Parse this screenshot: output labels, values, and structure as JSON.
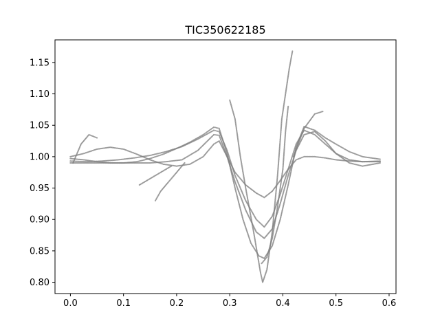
{
  "chart_data": {
    "type": "scatter",
    "title": "TIC350622185",
    "xlabel": "",
    "ylabel": "",
    "xlim": [
      -0.029,
      0.613
    ],
    "ylim": [
      0.782,
      1.186
    ],
    "xticks": [
      0.0,
      0.1,
      0.2,
      0.3,
      0.4,
      0.5,
      0.6
    ],
    "xtick_labels": [
      "0.0",
      "0.1",
      "0.2",
      "0.3",
      "0.4",
      "0.5",
      "0.6"
    ],
    "yticks": [
      0.8,
      0.85,
      0.9,
      0.95,
      1.0,
      1.05,
      1.1,
      1.15
    ],
    "ytick_labels": [
      "0.80",
      "0.85",
      "0.90",
      "0.95",
      "1.00",
      "1.05",
      "1.10",
      "1.15"
    ],
    "grid": false,
    "legend": "none",
    "marker_color": "#808080",
    "series": [
      {
        "curve": "deepest-eclipse",
        "points": [
          [
            0.0,
            0.997
          ],
          [
            0.025,
            0.995
          ],
          [
            0.05,
            0.992
          ],
          [
            0.075,
            0.99
          ],
          [
            0.1,
            0.99
          ],
          [
            0.125,
            0.992
          ],
          [
            0.15,
            0.997
          ],
          [
            0.175,
            1.004
          ],
          [
            0.2,
            1.013
          ],
          [
            0.225,
            1.023
          ],
          [
            0.25,
            1.035
          ],
          [
            0.27,
            1.047
          ],
          [
            0.28,
            1.045
          ],
          [
            0.295,
            1.005
          ],
          [
            0.31,
            0.95
          ],
          [
            0.325,
            0.9
          ],
          [
            0.34,
            0.862
          ],
          [
            0.355,
            0.842
          ],
          [
            0.365,
            0.838
          ],
          [
            0.38,
            0.858
          ],
          [
            0.395,
            0.9
          ],
          [
            0.41,
            0.955
          ],
          [
            0.425,
            1.015
          ],
          [
            0.44,
            1.048
          ],
          [
            0.46,
            1.042
          ],
          [
            0.48,
            1.03
          ],
          [
            0.5,
            1.02
          ],
          [
            0.525,
            1.008
          ],
          [
            0.55,
            1.0
          ],
          [
            0.583,
            0.996
          ]
        ]
      },
      {
        "curve": "medium-eclipse",
        "points": [
          [
            0.0,
            0.993
          ],
          [
            0.03,
            0.992
          ],
          [
            0.06,
            0.993
          ],
          [
            0.09,
            0.995
          ],
          [
            0.12,
            0.998
          ],
          [
            0.15,
            1.002
          ],
          [
            0.18,
            1.008
          ],
          [
            0.21,
            1.016
          ],
          [
            0.24,
            1.028
          ],
          [
            0.27,
            1.042
          ],
          [
            0.28,
            1.04
          ],
          [
            0.295,
            1.01
          ],
          [
            0.31,
            0.97
          ],
          [
            0.33,
            0.93
          ],
          [
            0.35,
            0.9
          ],
          [
            0.365,
            0.888
          ],
          [
            0.38,
            0.905
          ],
          [
            0.395,
            0.94
          ],
          [
            0.41,
            0.98
          ],
          [
            0.425,
            1.02
          ],
          [
            0.44,
            1.042
          ],
          [
            0.46,
            1.035
          ],
          [
            0.48,
            1.02
          ],
          [
            0.5,
            1.005
          ],
          [
            0.525,
            0.995
          ],
          [
            0.55,
            0.992
          ],
          [
            0.583,
            0.993
          ]
        ]
      },
      {
        "curve": "shallow-eclipse",
        "points": [
          [
            0.0,
            0.99
          ],
          [
            0.03,
            0.99
          ],
          [
            0.06,
            0.99
          ],
          [
            0.09,
            0.99
          ],
          [
            0.12,
            0.99
          ],
          [
            0.15,
            0.99
          ],
          [
            0.18,
            0.992
          ],
          [
            0.21,
            0.995
          ],
          [
            0.24,
            1.01
          ],
          [
            0.27,
            1.035
          ],
          [
            0.28,
            1.034
          ],
          [
            0.295,
            1.0
          ],
          [
            0.31,
            0.975
          ],
          [
            0.33,
            0.955
          ],
          [
            0.35,
            0.942
          ],
          [
            0.365,
            0.935
          ],
          [
            0.38,
            0.945
          ],
          [
            0.395,
            0.962
          ],
          [
            0.41,
            0.98
          ],
          [
            0.425,
            0.995
          ],
          [
            0.44,
            1.0
          ],
          [
            0.46,
            1.0
          ],
          [
            0.48,
            0.998
          ],
          [
            0.5,
            0.995
          ],
          [
            0.525,
            0.993
          ],
          [
            0.55,
            0.992
          ],
          [
            0.583,
            0.992
          ]
        ]
      },
      {
        "curve": "wavy-baseline",
        "points": [
          [
            0.0,
            1.0
          ],
          [
            0.025,
            1.005
          ],
          [
            0.05,
            1.012
          ],
          [
            0.075,
            1.015
          ],
          [
            0.1,
            1.012
          ],
          [
            0.125,
            1.004
          ],
          [
            0.15,
            0.995
          ],
          [
            0.175,
            0.988
          ],
          [
            0.2,
            0.985
          ],
          [
            0.225,
            0.988
          ],
          [
            0.25,
            1.0
          ],
          [
            0.27,
            1.02
          ],
          [
            0.28,
            1.025
          ],
          [
            0.295,
            1.0
          ],
          [
            0.31,
            0.96
          ],
          [
            0.33,
            0.915
          ],
          [
            0.35,
            0.88
          ],
          [
            0.365,
            0.87
          ],
          [
            0.38,
            0.885
          ],
          [
            0.395,
            0.925
          ],
          [
            0.41,
            0.97
          ],
          [
            0.425,
            1.01
          ],
          [
            0.44,
            1.035
          ],
          [
            0.46,
            1.04
          ],
          [
            0.48,
            1.025
          ],
          [
            0.5,
            1.005
          ],
          [
            0.525,
            0.99
          ],
          [
            0.55,
            0.985
          ],
          [
            0.583,
            0.99
          ]
        ]
      },
      {
        "curve": "outlier-spike",
        "points": [
          [
            0.3,
            1.09
          ],
          [
            0.31,
            1.06
          ],
          [
            0.32,
            1.0
          ],
          [
            0.33,
            0.95
          ],
          [
            0.345,
            0.88
          ],
          [
            0.358,
            0.815
          ],
          [
            0.362,
            0.8
          ],
          [
            0.37,
            0.82
          ],
          [
            0.38,
            0.88
          ],
          [
            0.39,
            0.97
          ],
          [
            0.398,
            1.06
          ],
          [
            0.405,
            1.1
          ],
          [
            0.412,
            1.14
          ],
          [
            0.418,
            1.168
          ]
        ]
      },
      {
        "curve": "outlier-dip",
        "points": [
          [
            0.36,
            0.83
          ],
          [
            0.37,
            0.84
          ],
          [
            0.38,
            0.87
          ],
          [
            0.39,
            0.92
          ],
          [
            0.4,
            0.98
          ],
          [
            0.405,
            1.04
          ],
          [
            0.41,
            1.08
          ]
        ]
      },
      {
        "curve": "stray-segment",
        "points": [
          [
            0.16,
            0.93
          ],
          [
            0.17,
            0.945
          ],
          [
            0.185,
            0.96
          ],
          [
            0.2,
            0.975
          ],
          [
            0.215,
            0.99
          ]
        ]
      },
      {
        "curve": "stray-segment-2",
        "points": [
          [
            0.13,
            0.955
          ],
          [
            0.15,
            0.965
          ],
          [
            0.17,
            0.975
          ],
          [
            0.19,
            0.985
          ]
        ]
      },
      {
        "curve": "high-tail",
        "points": [
          [
            0.42,
            1.0
          ],
          [
            0.44,
            1.045
          ],
          [
            0.46,
            1.068
          ],
          [
            0.475,
            1.072
          ]
        ]
      },
      {
        "curve": "start-tail",
        "points": [
          [
            0.005,
            0.99
          ],
          [
            0.02,
            1.02
          ],
          [
            0.035,
            1.035
          ],
          [
            0.05,
            1.03
          ]
        ]
      }
    ]
  }
}
